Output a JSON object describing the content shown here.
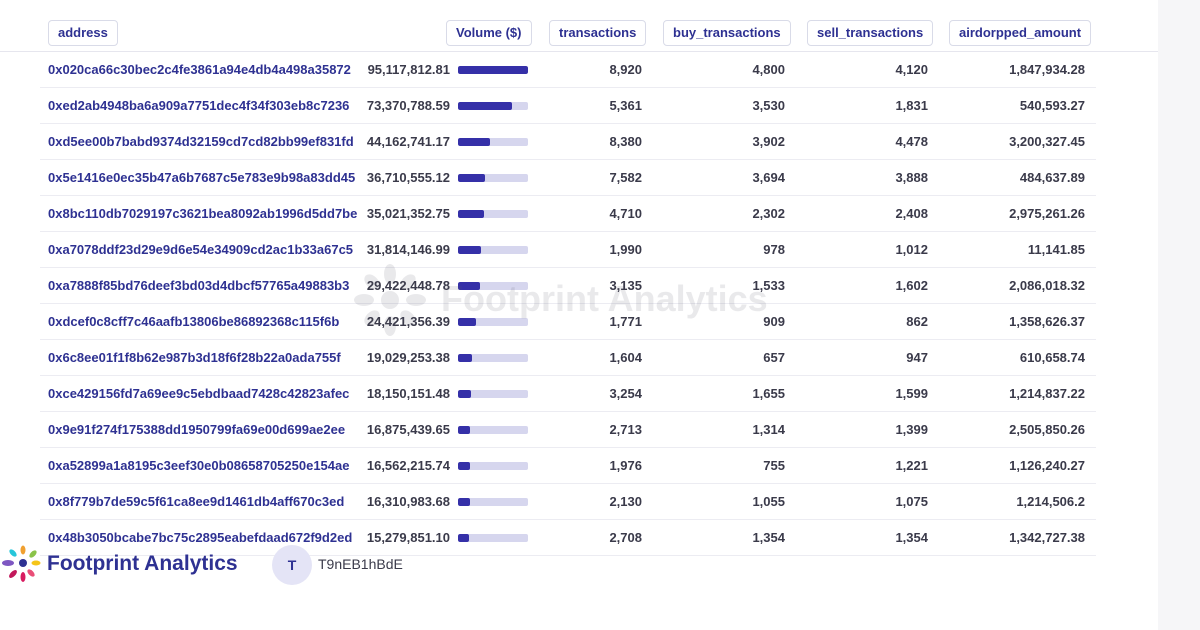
{
  "columns": {
    "address": "address",
    "volume": "Volume ($)",
    "transactions": "transactions",
    "buy_transactions": "buy_transactions",
    "sell_transactions": "sell_transactions",
    "airdropped_amount": "airdorpped_amount"
  },
  "rows": [
    {
      "address": "0x020ca66c30bec2c4fe3861a94e4db4a498a35872",
      "volume": "95,117,812.81",
      "volume_share": 1.0,
      "transactions": "8,920",
      "buy": "4,800",
      "sell": "4,120",
      "airdrop": "1,847,934.28"
    },
    {
      "address": "0xed2ab4948ba6a909a7751dec4f34f303eb8c7236",
      "volume": "73,370,788.59",
      "volume_share": 0.771,
      "transactions": "5,361",
      "buy": "3,530",
      "sell": "1,831",
      "airdrop": "540,593.27"
    },
    {
      "address": "0xd5ee00b7babd9374d32159cd7cd82bb99ef831fd",
      "volume": "44,162,741.17",
      "volume_share": 0.464,
      "transactions": "8,380",
      "buy": "3,902",
      "sell": "4,478",
      "airdrop": "3,200,327.45"
    },
    {
      "address": "0x5e1416e0ec35b47a6b7687c5e783e9b98a83dd45",
      "volume": "36,710,555.12",
      "volume_share": 0.386,
      "transactions": "7,582",
      "buy": "3,694",
      "sell": "3,888",
      "airdrop": "484,637.89"
    },
    {
      "address": "0x8bc110db7029197c3621bea8092ab1996d5dd7be",
      "volume": "35,021,352.75",
      "volume_share": 0.368,
      "transactions": "4,710",
      "buy": "2,302",
      "sell": "2,408",
      "airdrop": "2,975,261.26"
    },
    {
      "address": "0xa7078ddf23d29e9d6e54e34909cd2ac1b33a67c5",
      "volume": "31,814,146.99",
      "volume_share": 0.334,
      "transactions": "1,990",
      "buy": "978",
      "sell": "1,012",
      "airdrop": "11,141.85"
    },
    {
      "address": "0xa7888f85bd76deef3bd03d4dbcf57765a49883b3",
      "volume": "29,422,448.78",
      "volume_share": 0.309,
      "transactions": "3,135",
      "buy": "1,533",
      "sell": "1,602",
      "airdrop": "2,086,018.32"
    },
    {
      "address": "0xdcef0c8cff7c46aafb13806be86892368c115f6b",
      "volume": "24,421,356.39",
      "volume_share": 0.257,
      "transactions": "1,771",
      "buy": "909",
      "sell": "862",
      "airdrop": "1,358,626.37"
    },
    {
      "address": "0x6c8ee01f1f8b62e987b3d18f6f28b22a0ada755f",
      "volume": "19,029,253.38",
      "volume_share": 0.2,
      "transactions": "1,604",
      "buy": "657",
      "sell": "947",
      "airdrop": "610,658.74"
    },
    {
      "address": "0xce429156fd7a69ee9c5ebdbaad7428c42823afec",
      "volume": "18,150,151.48",
      "volume_share": 0.191,
      "transactions": "3,254",
      "buy": "1,655",
      "sell": "1,599",
      "airdrop": "1,214,837.22"
    },
    {
      "address": "0x9e91f274f175388dd1950799fa69e00d699ae2ee",
      "volume": "16,875,439.65",
      "volume_share": 0.177,
      "transactions": "2,713",
      "buy": "1,314",
      "sell": "1,399",
      "airdrop": "2,505,850.26"
    },
    {
      "address": "0xa52899a1a8195c3eef30e0b08658705250e154ae",
      "volume": "16,562,215.74",
      "volume_share": 0.174,
      "transactions": "1,976",
      "buy": "755",
      "sell": "1,221",
      "airdrop": "1,126,240.27"
    },
    {
      "address": "0x8f779b7de59c5f61ca8ee9d1461db4aff670c3ed",
      "volume": "16,310,983.68",
      "volume_share": 0.171,
      "transactions": "2,130",
      "buy": "1,055",
      "sell": "1,075",
      "airdrop": "1,214,506.2"
    },
    {
      "address": "0x48b3050bcabe7bc75c2895eabefdaad672f9d2ed",
      "volume": "15,279,851.10",
      "volume_share": 0.161,
      "transactions": "2,708",
      "buy": "1,354",
      "sell": "1,354",
      "airdrop": "1,342,727.38"
    }
  ],
  "watermark": {
    "text": "Footprint Analytics",
    "icon": "footprint-flower-icon"
  },
  "footer": {
    "brand": "Footprint Analytics",
    "logo_icon": "footprint-flower-icon",
    "avatar_initial": "T",
    "username": "T9nEB1hBdE"
  },
  "colors": {
    "accent": "#2e3192",
    "bar_fill": "#3530a8",
    "bar_track": "#d6d6ee",
    "avatar_bg": "#e4e4f6"
  }
}
